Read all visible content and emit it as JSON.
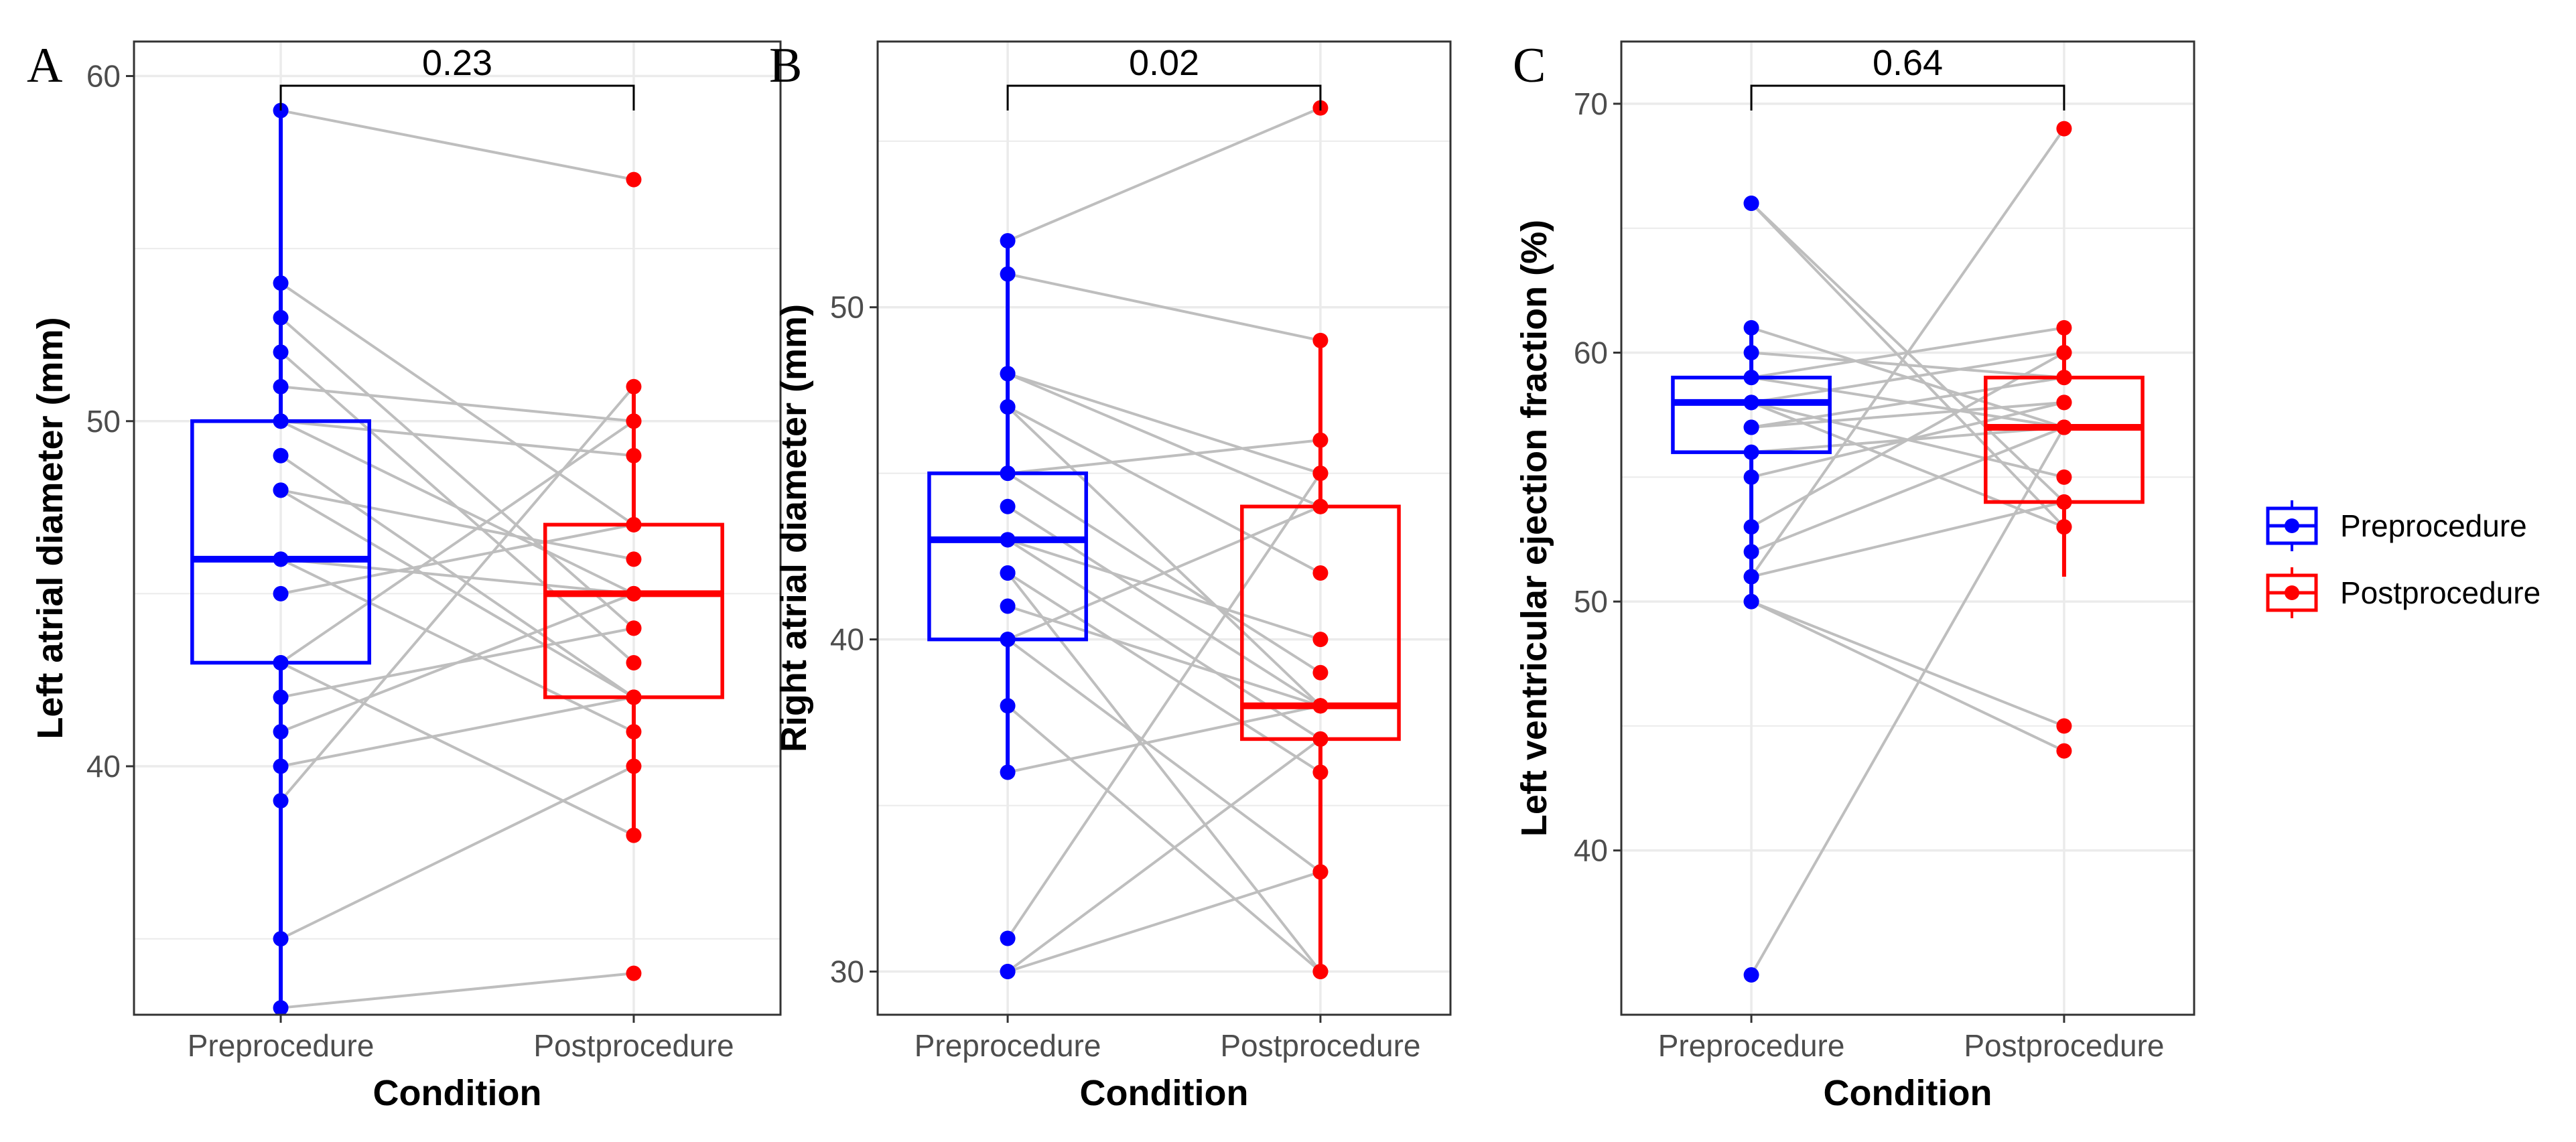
{
  "colors": {
    "pre": "#0000FF",
    "post": "#FF0000",
    "pair_line": "#BEBEBE",
    "grid": "#EBEBEB",
    "panel_border": "#333333"
  },
  "legend": {
    "position": "right",
    "entries": [
      {
        "label": "Preprocedure",
        "color": "#0000FF"
      },
      {
        "label": "Postprocedure",
        "color": "#FF0000"
      }
    ]
  },
  "chart_data": [
    {
      "panel": "A",
      "type": "box-paired",
      "xlabel": "Condition",
      "ylabel": "Left atrial diameter (mm)",
      "categories": [
        "Preprocedure",
        "Postprocedure"
      ],
      "ylim": [
        32.8,
        61.0
      ],
      "yticks": [
        40,
        50,
        60
      ],
      "minor_yticks": [
        35,
        45,
        55
      ],
      "pvalue": "0.23",
      "boxes": [
        {
          "name": "Preprocedure",
          "q1": 43,
          "median": 46,
          "q3": 50,
          "whisker_low": 33,
          "whisker_high": 59
        },
        {
          "name": "Postprocedure",
          "q1": 42,
          "median": 45,
          "q3": 47,
          "whisker_low": 38,
          "whisker_high": 51
        }
      ],
      "pairs": [
        [
          59,
          57
        ],
        [
          54,
          47
        ],
        [
          53,
          44
        ],
        [
          52,
          43
        ],
        [
          51,
          50
        ],
        [
          50,
          45
        ],
        [
          50,
          49
        ],
        [
          49,
          42
        ],
        [
          48,
          42
        ],
        [
          48,
          46
        ],
        [
          46,
          45
        ],
        [
          46,
          41
        ],
        [
          45,
          47
        ],
        [
          43,
          50
        ],
        [
          43,
          38
        ],
        [
          42,
          44
        ],
        [
          41,
          45
        ],
        [
          40,
          42
        ],
        [
          39,
          51
        ],
        [
          35,
          40
        ],
        [
          33,
          34
        ]
      ]
    },
    {
      "panel": "B",
      "type": "box-paired",
      "xlabel": "Condition",
      "ylabel": "Right atrial diameter (mm)",
      "categories": [
        "Preprocedure",
        "Postprocedure"
      ],
      "ylim": [
        28.7,
        58.0
      ],
      "yticks": [
        30,
        40,
        50
      ],
      "minor_yticks": [
        35,
        45,
        55
      ],
      "pvalue": "0.02",
      "boxes": [
        {
          "name": "Preprocedure",
          "q1": 40,
          "median": 43,
          "q3": 45,
          "whisker_low": 36,
          "whisker_high": 52
        },
        {
          "name": "Postprocedure",
          "q1": 37,
          "median": 38,
          "q3": 44,
          "whisker_low": 30,
          "whisker_high": 49
        }
      ],
      "pairs": [
        [
          52,
          56
        ],
        [
          51,
          49
        ],
        [
          48,
          45
        ],
        [
          48,
          44
        ],
        [
          47,
          42
        ],
        [
          47,
          38
        ],
        [
          45,
          46
        ],
        [
          45,
          39
        ],
        [
          44,
          38
        ],
        [
          43,
          40
        ],
        [
          43,
          37
        ],
        [
          42,
          30
        ],
        [
          42,
          36
        ],
        [
          41,
          38
        ],
        [
          40,
          33
        ],
        [
          40,
          44
        ],
        [
          38,
          30
        ],
        [
          36,
          38
        ],
        [
          31,
          45
        ],
        [
          30,
          33
        ],
        [
          30,
          37
        ]
      ]
    },
    {
      "panel": "C",
      "type": "box-paired",
      "xlabel": "Condition",
      "ylabel": "Left ventricular ejection fraction (%)",
      "categories": [
        "Preprocedure",
        "Postprocedure"
      ],
      "ylim": [
        33.4,
        72.5
      ],
      "yticks": [
        40,
        50,
        60,
        70
      ],
      "minor_yticks": [
        45,
        55,
        65
      ],
      "pvalue": "0.64",
      "boxes": [
        {
          "name": "Preprocedure",
          "q1": 56,
          "median": 58,
          "q3": 59,
          "whisker_low": 50,
          "whisker_high": 61
        },
        {
          "name": "Postprocedure",
          "q1": 54,
          "median": 57,
          "q3": 59,
          "whisker_low": 51,
          "whisker_high": 61
        }
      ],
      "pairs": [
        [
          66,
          54
        ],
        [
          66,
          53
        ],
        [
          61,
          57
        ],
        [
          60,
          59
        ],
        [
          59,
          61
        ],
        [
          59,
          57
        ],
        [
          58,
          60
        ],
        [
          58,
          55
        ],
        [
          58,
          53
        ],
        [
          57,
          59
        ],
        [
          57,
          58
        ],
        [
          56,
          57
        ],
        [
          55,
          58
        ],
        [
          53,
          60
        ],
        [
          52,
          57
        ],
        [
          51,
          69
        ],
        [
          51,
          54
        ],
        [
          50,
          45
        ],
        [
          50,
          44
        ],
        [
          35,
          57
        ]
      ]
    }
  ]
}
